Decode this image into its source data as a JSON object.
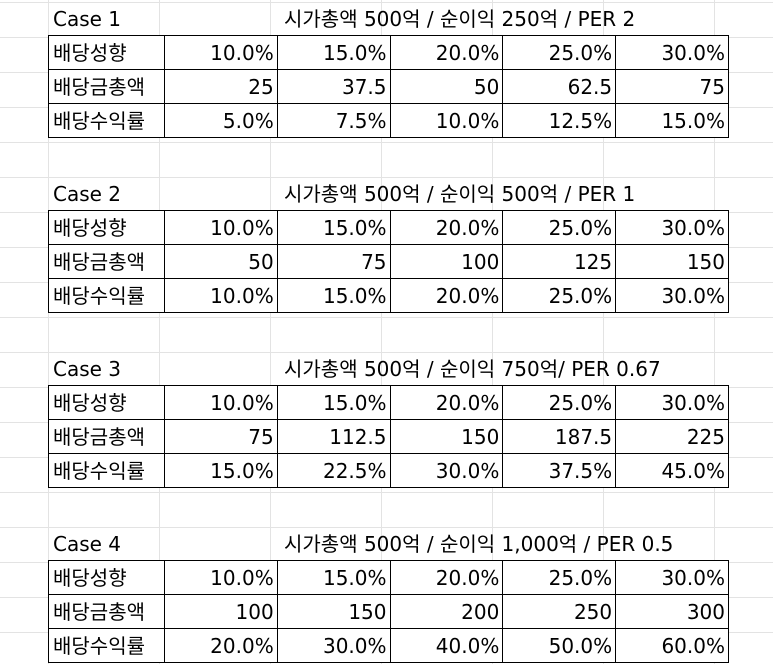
{
  "row_labels": {
    "payout_ratio": "배당성향",
    "total_dividend": "배당금총액",
    "dividend_yield": "배당수익률"
  },
  "cases": [
    {
      "label": "Case 1",
      "description": "시가총액 500억 / 순이익 250억 / PER 2",
      "payout_ratio": [
        "10.0%",
        "15.0%",
        "20.0%",
        "25.0%",
        "30.0%"
      ],
      "total_dividend": [
        "25",
        "37.5",
        "50",
        "62.5",
        "75"
      ],
      "dividend_yield": [
        "5.0%",
        "7.5%",
        "10.0%",
        "12.5%",
        "15.0%"
      ]
    },
    {
      "label": "Case 2",
      "description": "시가총액 500억 / 순이익 500억 / PER 1",
      "payout_ratio": [
        "10.0%",
        "15.0%",
        "20.0%",
        "25.0%",
        "30.0%"
      ],
      "total_dividend": [
        "50",
        "75",
        "100",
        "125",
        "150"
      ],
      "dividend_yield": [
        "10.0%",
        "15.0%",
        "20.0%",
        "25.0%",
        "30.0%"
      ]
    },
    {
      "label": "Case 3",
      "description": "시가총액 500억 / 순이익 750억/ PER 0.67",
      "payout_ratio": [
        "10.0%",
        "15.0%",
        "20.0%",
        "25.0%",
        "30.0%"
      ],
      "total_dividend": [
        "75",
        "112.5",
        "150",
        "187.5",
        "225"
      ],
      "dividend_yield": [
        "15.0%",
        "22.5%",
        "30.0%",
        "37.5%",
        "45.0%"
      ]
    },
    {
      "label": "Case 4",
      "description": "시가총액 500억 / 순이익 1,000억 / PER 0.5",
      "payout_ratio": [
        "10.0%",
        "15.0%",
        "20.0%",
        "25.0%",
        "30.0%"
      ],
      "total_dividend": [
        "100",
        "150",
        "200",
        "250",
        "300"
      ],
      "dividend_yield": [
        "20.0%",
        "30.0%",
        "40.0%",
        "50.0%",
        "60.0%"
      ]
    }
  ]
}
